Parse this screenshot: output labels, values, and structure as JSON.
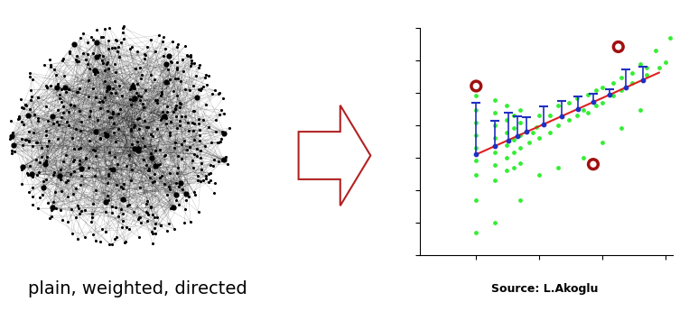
{
  "network": {
    "caption": "plain, weighted, directed"
  },
  "chart_data": {
    "type": "scatter",
    "log": true,
    "tick_labels": false,
    "grid": false,
    "xlim": [
      0.13,
      1300
    ],
    "ylim": [
      0.01,
      100000
    ],
    "xticks": [
      1,
      10,
      100,
      1000
    ],
    "yticks": [
      0.01,
      0.1,
      1,
      10,
      100,
      1000,
      10000,
      100000
    ],
    "color": "#33ee33",
    "x": [
      1,
      1,
      1,
      1,
      1,
      1,
      1,
      1,
      1,
      2,
      2,
      2,
      2,
      2,
      2,
      2,
      2,
      3,
      3,
      3,
      3,
      3,
      3,
      4,
      4,
      4,
      4,
      4,
      5,
      5,
      5,
      5,
      5,
      5,
      7,
      8,
      9,
      10,
      10,
      10,
      15,
      15,
      20,
      20,
      20,
      30,
      30,
      40,
      40,
      50,
      50,
      60,
      60,
      80,
      80,
      100,
      100,
      100,
      150,
      150,
      200,
      200,
      200,
      300,
      300,
      400,
      400,
      500,
      500,
      700,
      800,
      1000,
      1200
    ],
    "values": [
      0.05,
      0.5,
      3,
      8,
      20,
      50,
      120,
      300,
      800,
      0.1,
      2,
      6,
      15,
      40,
      100,
      250,
      600,
      4,
      10,
      25,
      60,
      150,
      400,
      5,
      15,
      35,
      80,
      200,
      0.5,
      7,
      20,
      50,
      120,
      300,
      30,
      60,
      90,
      3,
      40,
      200,
      60,
      200,
      5,
      100,
      400,
      150,
      500,
      200,
      700,
      10,
      300,
      250,
      900,
      400,
      1200,
      30,
      500,
      1500,
      800,
      2000,
      80,
      1200,
      3000,
      2000,
      4000,
      300,
      8000,
      3500,
      6000,
      20000,
      6000,
      9000,
      50000
    ],
    "fit": {
      "x": [
        1,
        794
      ],
      "values": [
        12.6,
        4200
      ],
      "color": "#e02020"
    },
    "medians": {
      "x": [
        1,
        2,
        3.2,
        4.5,
        6.3,
        11.8,
        22.8,
        40.9,
        72,
        129,
        236,
        436
      ],
      "values": [
        12.6,
        23,
        34,
        45,
        62,
        108,
        191,
        319,
        524,
        869,
        1470,
        2510
      ],
      "upper": [
        500,
        135,
        251,
        195,
        174,
        389,
        562,
        776,
        955,
        1290,
        5370,
        6310
      ],
      "color": "#2030c0"
    },
    "outliers": {
      "x": [
        1,
        180,
        72
      ],
      "values": [
        1620,
        26300,
        6.3
      ],
      "color": "#a01010"
    }
  },
  "source": "Source: L.Akoglu"
}
